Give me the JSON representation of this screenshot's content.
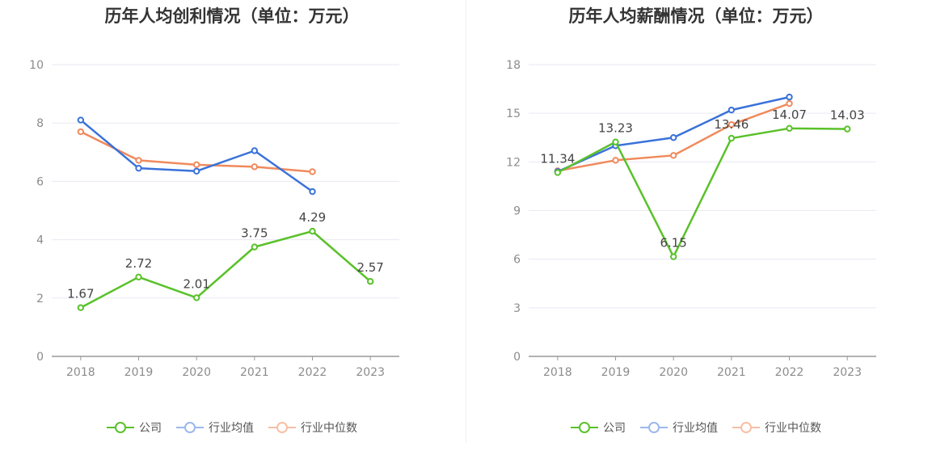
{
  "colors": {
    "company": "#5ac12a",
    "industry_avg": "#3a72d9",
    "industry_median": "#f08a5d",
    "grid": "#e6eaf2",
    "axis": "#999999",
    "tick_text": "#8c8c8c",
    "label_text": "#444444"
  },
  "legend_labels": [
    "公司",
    "行业均值",
    "行业中位数"
  ],
  "chart_data": [
    {
      "type": "line",
      "title": "历年人均创利情况（单位：万元）",
      "categories": [
        "2018",
        "2019",
        "2020",
        "2021",
        "2022",
        "2023"
      ],
      "ylim": [
        0,
        10
      ],
      "yticks": [
        0,
        2,
        4,
        6,
        8,
        10
      ],
      "grid": true,
      "legend_position": "bottom",
      "series": [
        {
          "name": "公司",
          "values": [
            1.67,
            2.72,
            2.01,
            3.75,
            4.29,
            2.57
          ],
          "labels": true
        },
        {
          "name": "行业均值",
          "values": [
            8.1,
            6.45,
            6.35,
            7.05,
            5.65,
            null
          ],
          "labels": false
        },
        {
          "name": "行业中位数",
          "values": [
            7.7,
            6.72,
            6.57,
            6.5,
            6.33,
            null
          ],
          "labels": false
        }
      ]
    },
    {
      "type": "line",
      "title": "历年人均薪酬情况（单位：万元）",
      "categories": [
        "2018",
        "2019",
        "2020",
        "2021",
        "2022",
        "2023"
      ],
      "ylim": [
        0,
        18
      ],
      "yticks": [
        0,
        3,
        6,
        9,
        12,
        15,
        18
      ],
      "grid": true,
      "legend_position": "bottom",
      "series": [
        {
          "name": "公司",
          "values": [
            11.34,
            13.23,
            6.15,
            13.46,
            14.07,
            14.03
          ],
          "labels": true
        },
        {
          "name": "行业均值",
          "values": [
            11.4,
            13.0,
            13.5,
            15.2,
            16.0,
            null
          ],
          "labels": false
        },
        {
          "name": "行业中位数",
          "values": [
            11.45,
            12.1,
            12.4,
            14.3,
            15.6,
            null
          ],
          "labels": false
        }
      ]
    }
  ]
}
